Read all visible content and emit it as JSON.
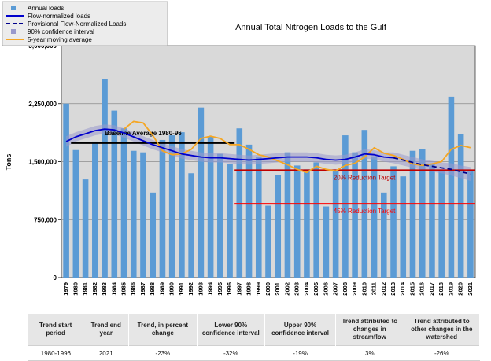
{
  "chart_data": {
    "type": "bar",
    "title": "Annual Total Nitrogen Loads to the Gulf",
    "ylabel": "Tons",
    "ylim": [
      0,
      3000000
    ],
    "yticks": [
      0,
      750000,
      1500000,
      2250000,
      3000000
    ],
    "ytick_labels": [
      "0",
      "750,000",
      "1,500,000",
      "2,250,000",
      "3,000,000"
    ],
    "grid": true,
    "legend_position": "top-left",
    "categories": [
      "1979",
      "1980",
      "1981",
      "1982",
      "1983",
      "1984",
      "1985",
      "1986",
      "1987",
      "1988",
      "1989",
      "1990",
      "1991",
      "1992",
      "1993",
      "1994",
      "1995",
      "1996",
      "1997",
      "1998",
      "1999",
      "2000",
      "2001",
      "2002",
      "2003",
      "2004",
      "2005",
      "2006",
      "2007",
      "2008",
      "2009",
      "2010",
      "2011",
      "2012",
      "2013",
      "2014",
      "2015",
      "2016",
      "2017",
      "2018",
      "2019",
      "2020",
      "2021"
    ],
    "series": [
      {
        "name": "Annual loads",
        "kind": "bar",
        "color": "#5b9bd5",
        "values": [
          2250000,
          1650000,
          1270000,
          1760000,
          2570000,
          2160000,
          1930000,
          1640000,
          1620000,
          1100000,
          1780000,
          1840000,
          1880000,
          1350000,
          2200000,
          1820000,
          1600000,
          1470000,
          1930000,
          1720000,
          1560000,
          930000,
          1330000,
          1620000,
          1450000,
          1400000,
          1490000,
          920000,
          1390000,
          1840000,
          1620000,
          1910000,
          1570000,
          1100000,
          1440000,
          1310000,
          1640000,
          1660000,
          1470000,
          1390000,
          2340000,
          1860000,
          1380000
        ]
      },
      {
        "name": "Flow-normalized loads",
        "kind": "line",
        "color": "#0000cc",
        "values": [
          1760000,
          1820000,
          1860000,
          1900000,
          1920000,
          1910000,
          1870000,
          1820000,
          1770000,
          1720000,
          1680000,
          1640000,
          1600000,
          1580000,
          1560000,
          1550000,
          1550000,
          1540000,
          1530000,
          1520000,
          1530000,
          1540000,
          1550000,
          1560000,
          1560000,
          1560000,
          1550000,
          1530000,
          1520000,
          1530000,
          1560000,
          1600000,
          1590000,
          1560000,
          1550000,
          null,
          null,
          null,
          null,
          null,
          null,
          null,
          null
        ]
      },
      {
        "name": "Provisional Flow-Normalized Loads",
        "kind": "line",
        "color": "#00008b",
        "values": [
          null,
          null,
          null,
          null,
          null,
          null,
          null,
          null,
          null,
          null,
          null,
          null,
          null,
          null,
          null,
          null,
          null,
          null,
          null,
          null,
          null,
          null,
          null,
          null,
          null,
          null,
          null,
          null,
          null,
          null,
          null,
          null,
          null,
          null,
          1550000,
          1520000,
          1490000,
          1460000,
          1440000,
          1420000,
          1400000,
          1370000,
          1340000
        ]
      },
      {
        "name": "90% confidence interval",
        "kind": "band",
        "color": "#9999cc",
        "lower": [
          1690000,
          1760000,
          1800000,
          1840000,
          1860000,
          1850000,
          1810000,
          1760000,
          1710000,
          1660000,
          1620000,
          1580000,
          1540000,
          1520000,
          1500000,
          1490000,
          1490000,
          1480000,
          1470000,
          1460000,
          1470000,
          1480000,
          1490000,
          1500000,
          1500000,
          1500000,
          1490000,
          1470000,
          1460000,
          1470000,
          1500000,
          1540000,
          1530000,
          1500000,
          1480000,
          1450000,
          1420000,
          1390000,
          1370000,
          1350000,
          1320000,
          1290000,
          1250000
        ],
        "upper": [
          1830000,
          1880000,
          1920000,
          1960000,
          1980000,
          1970000,
          1930000,
          1880000,
          1830000,
          1780000,
          1740000,
          1700000,
          1660000,
          1640000,
          1620000,
          1610000,
          1610000,
          1600000,
          1590000,
          1580000,
          1590000,
          1600000,
          1610000,
          1620000,
          1620000,
          1620000,
          1610000,
          1590000,
          1580000,
          1590000,
          1620000,
          1660000,
          1650000,
          1620000,
          1620000,
          1590000,
          1560000,
          1530000,
          1510000,
          1490000,
          1480000,
          1450000,
          1430000
        ]
      },
      {
        "name": "5-year moving average",
        "kind": "line",
        "color": "#f5a623",
        "values": [
          null,
          null,
          null,
          null,
          null,
          null,
          1920000,
          2020000,
          2000000,
          1840000,
          1640000,
          1590000,
          1600000,
          1660000,
          1800000,
          1830000,
          1800000,
          1720000,
          1720000,
          1660000,
          1590000,
          1560000,
          1510000,
          1460000,
          1400000,
          1360000,
          1440000,
          1400000,
          1380000,
          1450000,
          1480000,
          1560000,
          1680000,
          1610000,
          1580000,
          1530000,
          1470000,
          1450000,
          1470000,
          1500000,
          1660000,
          1710000,
          1680000
        ]
      }
    ],
    "baseline": {
      "label": "Baseline Average 1980-96",
      "value": 1740000,
      "from": "1980",
      "to": "1996",
      "color": "#000000"
    },
    "targets": [
      {
        "label": "20% Reduction Target",
        "value": 1390000,
        "from": "1997",
        "to": "2021",
        "color": "#c00000"
      },
      {
        "label": "45% Reduction Target",
        "value": 955000,
        "from": "1997",
        "to": "2021",
        "color": "#ff0000"
      }
    ],
    "legend": [
      "Annual loads",
      "Flow-normalized loads",
      "Provisional Flow-Normalized Loads",
      "90% confidence interval",
      "5-year moving average"
    ]
  },
  "table": {
    "headers": [
      "Trend start period",
      "Trend end year",
      "Trend, in percent change",
      "Lower 90% confidence interval",
      "Upper 90% confidence interval",
      "Trend attributed to changes in streamflow",
      "Trend attributed to other changes in the watershed"
    ],
    "rows": [
      [
        "1980-1996",
        "2021",
        "-23%",
        "-32%",
        "-19%",
        "3%",
        "-26%"
      ]
    ]
  }
}
